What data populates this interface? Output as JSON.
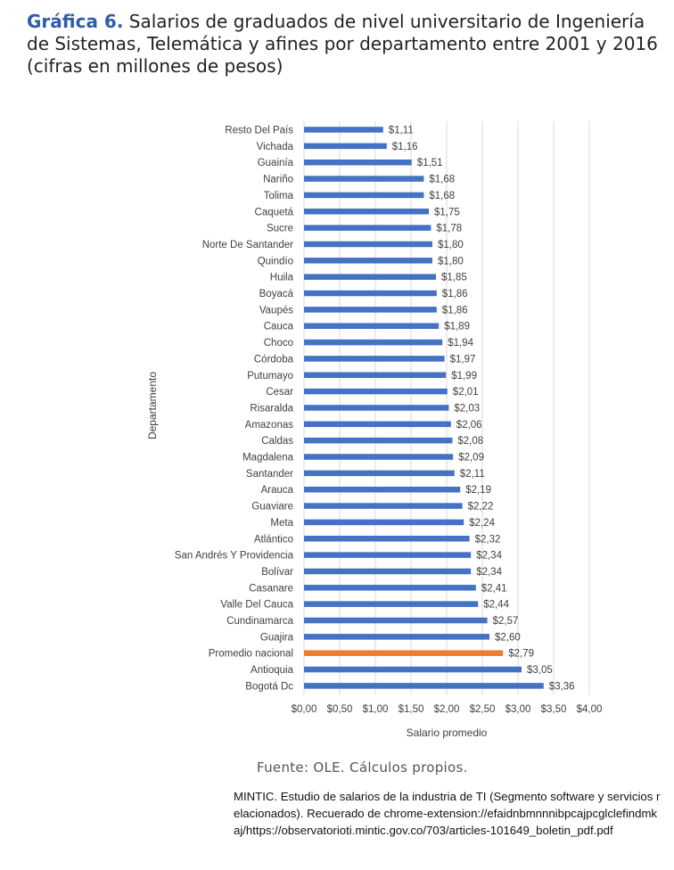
{
  "header": {
    "label": "Gráfica 6.",
    "title": "Salarios de graduados de nivel universitario de Ingeniería de Sistemas, Telemática y afines por departamento entre 2001 y 2016 (cifras en millones de pesos)"
  },
  "chart_data": {
    "type": "bar",
    "orientation": "horizontal",
    "xlabel": "Salario promedio",
    "ylabel": "Departamento",
    "xlim": [
      0,
      4
    ],
    "xticks": [
      "$0,00",
      "$0,50",
      "$1,00",
      "$1,50",
      "$2,00",
      "$2,50",
      "$3,00",
      "$3,50",
      "$4,00"
    ],
    "grid": "vertical",
    "colors": {
      "bar": "#4472c4",
      "highlight": "#ed7d31",
      "grid": "#d9d9d9"
    },
    "highlight_category": "Promedio nacional",
    "categories": [
      "Resto Del País",
      "Vichada",
      "Guainía",
      "Nariño",
      "Tolima",
      "Caquetá",
      "Sucre",
      "Norte De Santander",
      "Quindío",
      "Huila",
      "Boyacá",
      "Vaupés",
      "Cauca",
      "Choco",
      "Córdoba",
      "Putumayo",
      "Cesar",
      "Risaralda",
      "Amazonas",
      "Caldas",
      "Magdalena",
      "Santander",
      "Arauca",
      "Guaviare",
      "Meta",
      "Atlántico",
      "San Andrés Y Providencia",
      "Bolívar",
      "Casanare",
      "Valle Del Cauca",
      "Cundinamarca",
      "Guajira",
      "Promedio nacional",
      "Antioquia",
      "Bogotá Dc"
    ],
    "values": [
      1.11,
      1.16,
      1.51,
      1.68,
      1.68,
      1.75,
      1.78,
      1.8,
      1.8,
      1.85,
      1.86,
      1.86,
      1.89,
      1.94,
      1.97,
      1.99,
      2.01,
      2.03,
      2.06,
      2.08,
      2.09,
      2.11,
      2.19,
      2.22,
      2.24,
      2.32,
      2.34,
      2.34,
      2.41,
      2.44,
      2.57,
      2.6,
      2.79,
      3.05,
      3.36
    ],
    "value_labels": [
      "$1,11",
      "$1,16",
      "$1,51",
      "$1,68",
      "$1,68",
      "$1,75",
      "$1,78",
      "$1,80",
      "$1,80",
      "$1,85",
      "$1,86",
      "$1,86",
      "$1,89",
      "$1,94",
      "$1,97",
      "$1,99",
      "$2,01",
      "$2,03",
      "$2,06",
      "$2,08",
      "$2,09",
      "$2,11",
      "$2,19",
      "$2,22",
      "$2,24",
      "$2,32",
      "$2,34",
      "$2,34",
      "$2,41",
      "$2,44",
      "$2,57",
      "$2,60",
      "$2,79",
      "$3,05",
      "$3,36"
    ]
  },
  "source": "Fuente: OLE. Cálculos propios.",
  "citation": "MINTIC. Estudio de salarios de la industria de TI  (Segmento software y servicios relacionados). Recuerado de chrome-extension://efaidnbmnnnibpcajpcglclefindmkaj/https://observatorioti.mintic.gov.co/703/articles-101649_boletin_pdf.pdf"
}
